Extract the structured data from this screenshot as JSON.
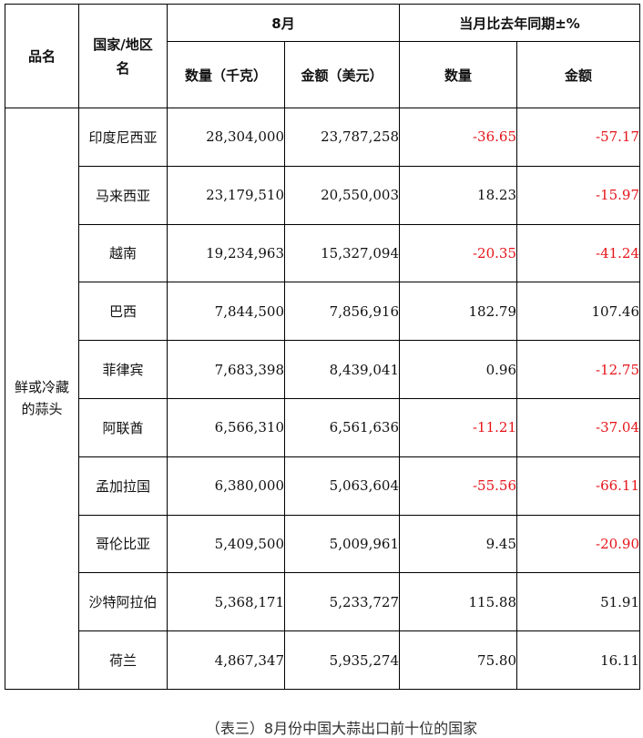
{
  "table": {
    "headers": {
      "product": "品名",
      "country": "国家/地区名",
      "month_group": "8月",
      "yoy_group": "当月比去年同期±%",
      "quantity_kg": "数量（千克）",
      "amount_usd": "金额（美元）",
      "yoy_quantity": "数量",
      "yoy_amount": "金额"
    },
    "category": "鲜或冷藏的蒜头",
    "rows": [
      {
        "country": "印度尼西亚",
        "quantity": "28,304,000",
        "amount": "23,787,258",
        "yoy_quantity": "-36.65",
        "yoy_amount": "-57.17"
      },
      {
        "country": "马来西亚",
        "quantity": "23,179,510",
        "amount": "20,550,003",
        "yoy_quantity": "18.23",
        "yoy_amount": "-15.97"
      },
      {
        "country": "越南",
        "quantity": "19,234,963",
        "amount": "15,327,094",
        "yoy_quantity": "-20.35",
        "yoy_amount": "-41.24"
      },
      {
        "country": "巴西",
        "quantity": "7,844,500",
        "amount": "7,856,916",
        "yoy_quantity": "182.79",
        "yoy_amount": "107.46"
      },
      {
        "country": "菲律宾",
        "quantity": "7,683,398",
        "amount": "8,439,041",
        "yoy_quantity": "0.96",
        "yoy_amount": "-12.75"
      },
      {
        "country": "阿联酋",
        "quantity": "6,566,310",
        "amount": "6,561,636",
        "yoy_quantity": "-11.21",
        "yoy_amount": "-37.04"
      },
      {
        "country": "孟加拉国",
        "quantity": "6,380,000",
        "amount": "5,063,604",
        "yoy_quantity": "-55.56",
        "yoy_amount": "-66.11"
      },
      {
        "country": "哥伦比亚",
        "quantity": "5,409,500",
        "amount": "5,009,961",
        "yoy_quantity": "9.45",
        "yoy_amount": "-20.90"
      },
      {
        "country": "沙特阿拉伯",
        "quantity": "5,368,171",
        "amount": "5,233,727",
        "yoy_quantity": "115.88",
        "yoy_amount": "51.91"
      },
      {
        "country": "荷兰",
        "quantity": "4,867,347",
        "amount": "5,935,274",
        "yoy_quantity": "75.80",
        "yoy_amount": "16.11"
      }
    ]
  },
  "caption": "（表三）8月份中国大蒜出口前十位的国家",
  "colors": {
    "negative": "#e5141a",
    "text": "#111111",
    "border": "#000000"
  }
}
